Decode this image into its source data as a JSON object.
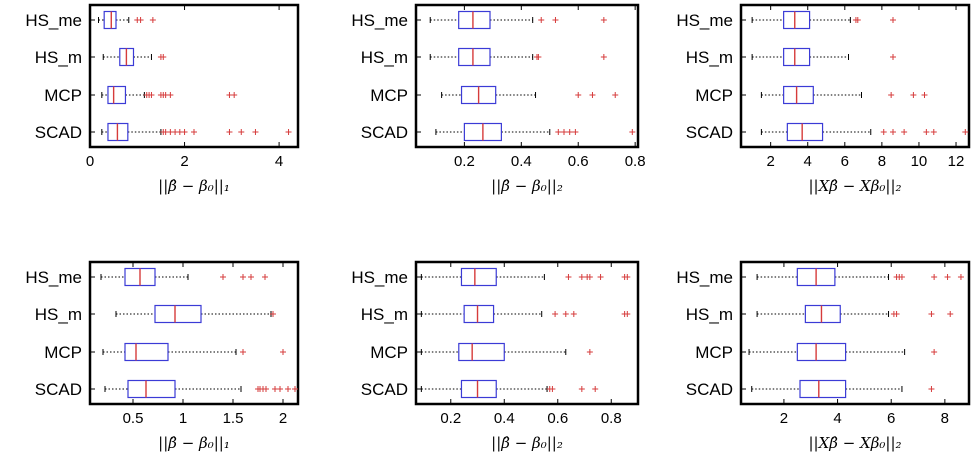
{
  "colors": {
    "box": "#3b3bd6",
    "median": "#d63b3b",
    "outlier": "#d63b3b",
    "whisker": "#000000",
    "frame": "#000000"
  },
  "chart_data": [
    {
      "type": "boxplot",
      "categories": [
        "HS_me",
        "HS_m",
        "MCP",
        "SCAD"
      ],
      "xlabel": "||β̂ − β₀||₁",
      "xlim": [
        0,
        4.4
      ],
      "xticks": [
        0,
        2,
        4
      ],
      "xtick_labels": [
        "0",
        "2",
        "4"
      ],
      "boxes": [
        {
          "whisker_low": 0.18,
          "q1": 0.3,
          "median": 0.45,
          "q3": 0.55,
          "whisker_high": 0.82,
          "outliers": [
            1.0,
            1.07,
            1.33
          ]
        },
        {
          "whisker_low": 0.28,
          "q1": 0.63,
          "median": 0.77,
          "q3": 0.92,
          "whisker_high": 1.3,
          "outliers": [
            1.5,
            1.55
          ]
        },
        {
          "whisker_low": 0.25,
          "q1": 0.38,
          "median": 0.5,
          "q3": 0.75,
          "whisker_high": 1.15,
          "outliers": [
            1.2,
            1.25,
            1.3,
            1.5,
            1.55,
            1.6,
            1.7,
            2.95,
            3.05
          ]
        },
        {
          "whisker_low": 0.25,
          "q1": 0.38,
          "median": 0.58,
          "q3": 0.8,
          "whisker_high": 1.5,
          "outliers": [
            1.55,
            1.6,
            1.7,
            1.8,
            1.9,
            2.0,
            2.2,
            2.95,
            3.2,
            3.5,
            4.2
          ]
        }
      ]
    },
    {
      "type": "boxplot",
      "categories": [
        "HS_me",
        "HS_m",
        "MCP",
        "SCAD"
      ],
      "xlabel": "||β̂ − β₀||₂",
      "xlim": [
        0.03,
        0.81
      ],
      "xticks": [
        0.2,
        0.4,
        0.6,
        0.8
      ],
      "xtick_labels": [
        "0.2",
        "0.4",
        "0.6",
        "0.8"
      ],
      "boxes": [
        {
          "whisker_low": 0.08,
          "q1": 0.18,
          "median": 0.23,
          "q3": 0.29,
          "whisker_high": 0.44,
          "outliers": [
            0.47,
            0.52,
            0.69
          ]
        },
        {
          "whisker_low": 0.08,
          "q1": 0.18,
          "median": 0.23,
          "q3": 0.29,
          "whisker_high": 0.44,
          "outliers": [
            0.455,
            0.46,
            0.69
          ]
        },
        {
          "whisker_low": 0.12,
          "q1": 0.19,
          "median": 0.25,
          "q3": 0.31,
          "whisker_high": 0.45,
          "outliers": [
            0.6,
            0.65,
            0.73
          ]
        },
        {
          "whisker_low": 0.1,
          "q1": 0.2,
          "median": 0.265,
          "q3": 0.33,
          "whisker_high": 0.5,
          "outliers": [
            0.53,
            0.55,
            0.57,
            0.59,
            0.79
          ]
        }
      ]
    },
    {
      "type": "boxplot",
      "categories": [
        "HS_me",
        "HS_m",
        "MCP",
        "SCAD"
      ],
      "xlabel": "||Xβ̂ − Xβ₀||₂",
      "xlim": [
        0.4,
        12.7
      ],
      "xticks": [
        2,
        4,
        6,
        8,
        10,
        12
      ],
      "xtick_labels": [
        "2",
        "4",
        "6",
        "8",
        "10",
        "12"
      ],
      "boxes": [
        {
          "whisker_low": 1.0,
          "q1": 2.7,
          "median": 3.3,
          "q3": 4.1,
          "whisker_high": 6.3,
          "outliers": [
            6.6,
            6.7,
            8.6
          ]
        },
        {
          "whisker_low": 1.0,
          "q1": 2.7,
          "median": 3.3,
          "q3": 4.1,
          "whisker_high": 6.2,
          "outliers": [
            8.6
          ]
        },
        {
          "whisker_low": 1.5,
          "q1": 2.7,
          "median": 3.4,
          "q3": 4.3,
          "whisker_high": 6.9,
          "outliers": [
            8.5,
            9.7,
            10.3
          ]
        },
        {
          "whisker_low": 1.5,
          "q1": 2.9,
          "median": 3.7,
          "q3": 4.8,
          "whisker_high": 7.4,
          "outliers": [
            8.1,
            8.6,
            9.2,
            10.4,
            10.8,
            12.5
          ]
        }
      ]
    },
    {
      "type": "boxplot",
      "categories": [
        "HS_me",
        "HS_m",
        "MCP",
        "SCAD"
      ],
      "xlabel": "||β̂ − β₀||₁",
      "xlim": [
        0.07,
        2.15
      ],
      "xticks": [
        0.5,
        1,
        1.5,
        2
      ],
      "xtick_labels": [
        "0.5",
        "1",
        "1.5",
        "2"
      ],
      "boxes": [
        {
          "whisker_low": 0.18,
          "q1": 0.42,
          "median": 0.57,
          "q3": 0.72,
          "whisker_high": 1.05,
          "outliers": [
            1.4,
            1.6,
            1.68,
            1.82
          ]
        },
        {
          "whisker_low": 0.33,
          "q1": 0.72,
          "median": 0.92,
          "q3": 1.18,
          "whisker_high": 1.88,
          "outliers": [
            1.9
          ]
        },
        {
          "whisker_low": 0.2,
          "q1": 0.42,
          "median": 0.53,
          "q3": 0.85,
          "whisker_high": 1.53,
          "outliers": [
            1.6,
            2.0
          ]
        },
        {
          "whisker_low": 0.22,
          "q1": 0.45,
          "median": 0.63,
          "q3": 0.92,
          "whisker_high": 1.58,
          "outliers": [
            1.75,
            1.77,
            1.8,
            1.83,
            1.92,
            1.97,
            2.05,
            2.12
          ]
        }
      ]
    },
    {
      "type": "boxplot",
      "categories": [
        "HS_me",
        "HS_m",
        "MCP",
        "SCAD"
      ],
      "xlabel": "||β̂ − β₀||₂",
      "xlim": [
        0.07,
        0.9
      ],
      "xticks": [
        0.2,
        0.4,
        0.6,
        0.8
      ],
      "xtick_labels": [
        "0.2",
        "0.4",
        "0.6",
        "0.8"
      ],
      "boxes": [
        {
          "whisker_low": 0.09,
          "q1": 0.24,
          "median": 0.29,
          "q3": 0.37,
          "whisker_high": 0.55,
          "outliers": [
            0.64,
            0.69,
            0.71,
            0.72,
            0.76,
            0.85,
            0.86
          ]
        },
        {
          "whisker_low": 0.09,
          "q1": 0.25,
          "median": 0.3,
          "q3": 0.36,
          "whisker_high": 0.54,
          "outliers": [
            0.59,
            0.63,
            0.66,
            0.85,
            0.86
          ]
        },
        {
          "whisker_low": 0.09,
          "q1": 0.23,
          "median": 0.28,
          "q3": 0.4,
          "whisker_high": 0.63,
          "outliers": [
            0.72
          ]
        },
        {
          "whisker_low": 0.09,
          "q1": 0.24,
          "median": 0.3,
          "q3": 0.37,
          "whisker_high": 0.56,
          "outliers": [
            0.57,
            0.58,
            0.69,
            0.74
          ]
        }
      ]
    },
    {
      "type": "boxplot",
      "categories": [
        "HS_me",
        "HS_m",
        "MCP",
        "SCAD"
      ],
      "xlabel": "||Xβ̂ − Xβ₀||₂",
      "xlim": [
        0.4,
        8.9
      ],
      "xticks": [
        2,
        4,
        6,
        8
      ],
      "xtick_labels": [
        "2",
        "4",
        "6",
        "8"
      ],
      "boxes": [
        {
          "whisker_low": 1.0,
          "q1": 2.5,
          "median": 3.2,
          "q3": 3.9,
          "whisker_high": 5.9,
          "outliers": [
            6.2,
            6.3,
            6.4,
            7.6,
            8.1,
            8.6
          ]
        },
        {
          "whisker_low": 1.0,
          "q1": 2.8,
          "median": 3.4,
          "q3": 4.1,
          "whisker_high": 5.9,
          "outliers": [
            6.1,
            6.2,
            7.5,
            8.2
          ]
        },
        {
          "whisker_low": 0.7,
          "q1": 2.5,
          "median": 3.2,
          "q3": 4.3,
          "whisker_high": 6.5,
          "outliers": [
            7.6
          ]
        },
        {
          "whisker_low": 0.8,
          "q1": 2.6,
          "median": 3.3,
          "q3": 4.3,
          "whisker_high": 6.4,
          "outliers": [
            7.5
          ]
        }
      ]
    }
  ]
}
